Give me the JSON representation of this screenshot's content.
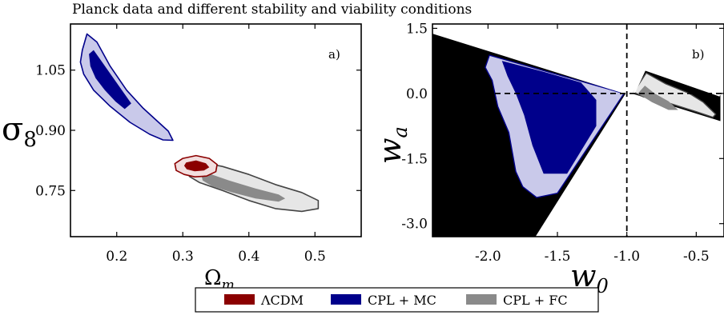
{
  "title": "Planck data and different stability and viability conditions",
  "colors": {
    "lcdm_inner": "#8b0000",
    "lcdm_outer": "#f2dede",
    "cpl_mc_inner": "#00008b",
    "cpl_mc_outer": "#c9c9ea",
    "cpl_fc_inner": "#8a8a8a",
    "cpl_fc_outer": "#e6e6e6",
    "excluded": "#000000"
  },
  "legend": {
    "items": [
      {
        "label": "ΛCDM",
        "color": "#8b0000"
      },
      {
        "label": "CPL + MC",
        "color": "#00008b"
      },
      {
        "label": "CPL + FC",
        "color": "#8a8a8a"
      }
    ]
  },
  "chart_data": [
    {
      "type": "contour",
      "panel_label": "a)",
      "xlabel": "Ω",
      "xlabel_sub": "m",
      "ylabel": "σ",
      "ylabel_sub": "8",
      "xlim": [
        0.13,
        0.57
      ],
      "ylim": [
        0.635,
        1.165
      ],
      "xticks": [
        0.2,
        0.3,
        0.4,
        0.5
      ],
      "xtick_labels": [
        "0.2",
        "0.3",
        "0.4",
        "0.5"
      ],
      "yticks": [
        0.75,
        0.9,
        1.05
      ],
      "ytick_labels": [
        "0.75",
        "0.90",
        "1.05"
      ],
      "series": [
        {
          "name": "CPL + MC",
          "outer": [
            [
              0.148,
              1.1
            ],
            [
              0.155,
              1.14
            ],
            [
              0.17,
              1.12
            ],
            [
              0.19,
              1.06
            ],
            [
              0.215,
              1.0
            ],
            [
              0.24,
              0.955
            ],
            [
              0.26,
              0.925
            ],
            [
              0.278,
              0.898
            ],
            [
              0.285,
              0.875
            ],
            [
              0.27,
              0.876
            ],
            [
              0.25,
              0.89
            ],
            [
              0.22,
              0.92
            ],
            [
              0.19,
              0.96
            ],
            [
              0.165,
              1.0
            ],
            [
              0.15,
              1.04
            ],
            [
              0.145,
              1.07
            ]
          ],
          "inner": [
            [
              0.158,
              1.09
            ],
            [
              0.165,
              1.1
            ],
            [
              0.178,
              1.07
            ],
            [
              0.195,
              1.03
            ],
            [
              0.212,
              0.99
            ],
            [
              0.222,
              0.967
            ],
            [
              0.212,
              0.953
            ],
            [
              0.198,
              0.972
            ],
            [
              0.182,
              1.0
            ],
            [
              0.168,
              1.03
            ],
            [
              0.16,
              1.06
            ]
          ]
        },
        {
          "name": "CPL + FC",
          "outer": [
            [
              0.33,
              0.82
            ],
            [
              0.36,
              0.81
            ],
            [
              0.4,
              0.79
            ],
            [
              0.44,
              0.765
            ],
            [
              0.48,
              0.745
            ],
            [
              0.505,
              0.725
            ],
            [
              0.505,
              0.705
            ],
            [
              0.48,
              0.698
            ],
            [
              0.44,
              0.705
            ],
            [
              0.4,
              0.725
            ],
            [
              0.36,
              0.75
            ],
            [
              0.325,
              0.77
            ],
            [
              0.31,
              0.785
            ],
            [
              0.308,
              0.805
            ]
          ],
          "inner": [
            [
              0.335,
              0.795
            ],
            [
              0.37,
              0.775
            ],
            [
              0.41,
              0.755
            ],
            [
              0.445,
              0.74
            ],
            [
              0.455,
              0.73
            ],
            [
              0.445,
              0.722
            ],
            [
              0.41,
              0.73
            ],
            [
              0.375,
              0.745
            ],
            [
              0.345,
              0.76
            ],
            [
              0.33,
              0.775
            ],
            [
              0.328,
              0.79
            ]
          ]
        },
        {
          "name": "ΛCDM",
          "outer": [
            [
              0.3,
              0.83
            ],
            [
              0.32,
              0.837
            ],
            [
              0.34,
              0.83
            ],
            [
              0.352,
              0.815
            ],
            [
              0.35,
              0.797
            ],
            [
              0.336,
              0.786
            ],
            [
              0.318,
              0.784
            ],
            [
              0.302,
              0.79
            ],
            [
              0.29,
              0.8
            ],
            [
              0.288,
              0.817
            ]
          ],
          "inner": [
            [
              0.305,
              0.82
            ],
            [
              0.32,
              0.825
            ],
            [
              0.335,
              0.818
            ],
            [
              0.34,
              0.808
            ],
            [
              0.332,
              0.8
            ],
            [
              0.318,
              0.798
            ],
            [
              0.306,
              0.803
            ],
            [
              0.302,
              0.812
            ]
          ]
        }
      ]
    },
    {
      "type": "contour",
      "panel_label": "b)",
      "xlabel": "w",
      "xlabel_sub": "0",
      "ylabel": "w",
      "ylabel_sub": "a",
      "xlim": [
        -2.4,
        -0.3
      ],
      "ylim": [
        -3.3,
        1.6
      ],
      "xticks": [
        -2.0,
        -1.5,
        -1.0,
        -0.5
      ],
      "xtick_labels": [
        "-2.0",
        "-1.5",
        "-1.0",
        "-0.5"
      ],
      "yticks": [
        -3.0,
        -1.5,
        0.0,
        1.5
      ],
      "ytick_labels": [
        "-3.0",
        "-1.5",
        "0.0",
        "1.5"
      ],
      "reference_lines": {
        "w0": -1.0,
        "wa": 0.0
      },
      "excluded_regions": [
        [
          [
            -2.4,
            1.4
          ],
          [
            -1.0,
            0.0
          ],
          [
            -1.65,
            -3.3
          ],
          [
            -2.4,
            -3.3
          ]
        ],
        [
          [
            -0.87,
            0.55
          ],
          [
            -0.33,
            -0.05
          ],
          [
            -0.33,
            -0.62
          ],
          [
            -0.95,
            0.0
          ]
        ]
      ],
      "series": [
        {
          "name": "CPL + MC",
          "outer": [
            [
              -1.99,
              0.88
            ],
            [
              -1.02,
              0.0
            ],
            [
              -1.5,
              -2.3
            ],
            [
              -1.65,
              -2.4
            ],
            [
              -1.75,
              -2.15
            ],
            [
              -1.8,
              -1.8
            ],
            [
              -1.85,
              -0.9
            ],
            [
              -1.93,
              -0.3
            ],
            [
              -1.97,
              0.3
            ],
            [
              -2.02,
              0.6
            ]
          ],
          "inner": [
            [
              -1.9,
              0.75
            ],
            [
              -1.6,
              0.5
            ],
            [
              -1.33,
              0.25
            ],
            [
              -1.22,
              -0.15
            ],
            [
              -1.22,
              -0.75
            ],
            [
              -1.43,
              -1.85
            ],
            [
              -1.6,
              -1.85
            ],
            [
              -1.68,
              -1.2
            ],
            [
              -1.74,
              -0.5
            ],
            [
              -1.8,
              0.0
            ],
            [
              -1.86,
              0.4
            ]
          ]
        },
        {
          "name": "CPL + FC",
          "outer": [
            [
              -0.95,
              0.03
            ],
            [
              -0.86,
              0.47
            ],
            [
              -0.72,
              0.22
            ],
            [
              -0.55,
              0.0
            ],
            [
              -0.45,
              -0.2
            ],
            [
              -0.36,
              -0.48
            ],
            [
              -0.38,
              -0.55
            ],
            [
              -0.5,
              -0.42
            ],
            [
              -0.7,
              -0.22
            ],
            [
              -0.88,
              -0.08
            ]
          ],
          "inner": [
            [
              -0.92,
              0.0
            ],
            [
              -0.87,
              0.18
            ],
            [
              -0.8,
              0.0
            ],
            [
              -0.7,
              -0.18
            ],
            [
              -0.63,
              -0.38
            ],
            [
              -0.7,
              -0.38
            ],
            [
              -0.82,
              -0.2
            ]
          ]
        }
      ]
    }
  ]
}
